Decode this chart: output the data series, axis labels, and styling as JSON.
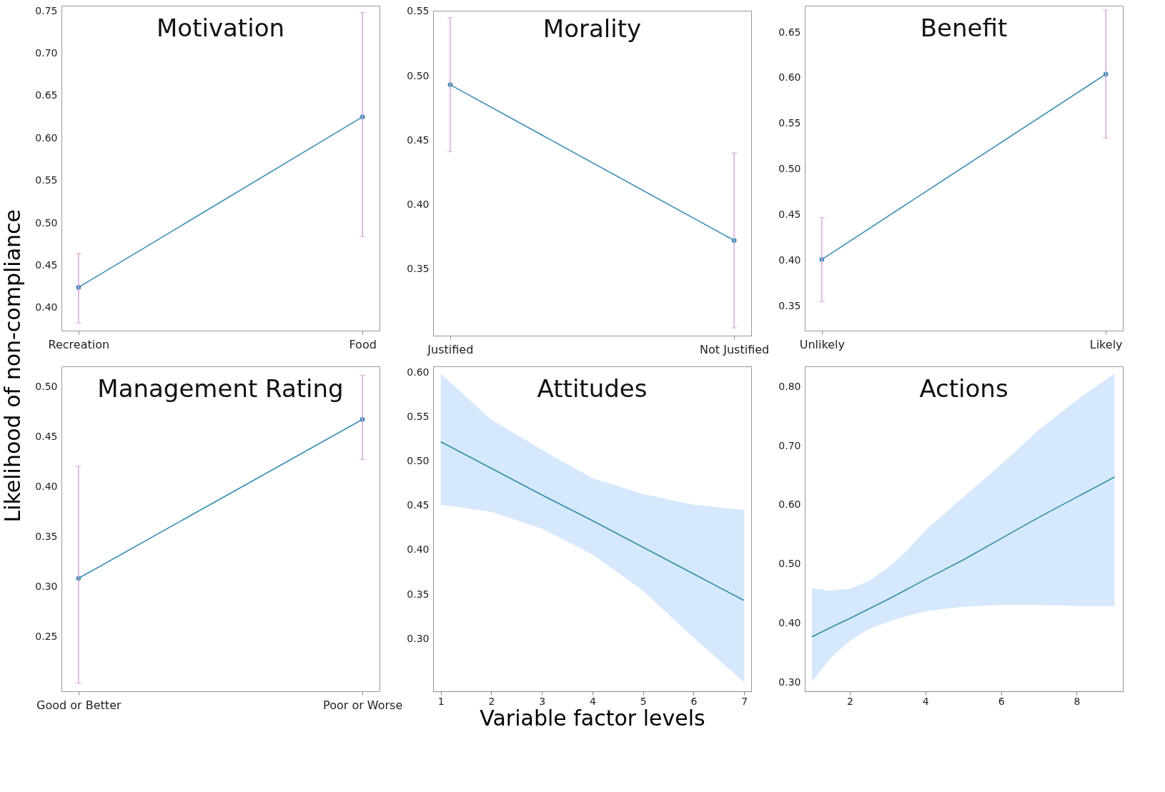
{
  "chart_data": [
    {
      "type": "line",
      "title": "Motivation",
      "ylabel": "Likelihood of non-compliance",
      "categories": [
        "Recreation",
        "Food"
      ],
      "marker": "circle",
      "series": [
        {
          "color": "#3a8fb5",
          "values": [
            0.424,
            0.625
          ],
          "errors": [
            [
              0.382,
              0.464
            ],
            [
              0.484,
              0.748
            ]
          ]
        }
      ],
      "ylim": [
        0.373,
        0.756
      ],
      "yticks": [
        {
          "value": 0.4,
          "label": "0.40"
        },
        {
          "value": 0.45,
          "label": "0.45"
        },
        {
          "value": 0.5,
          "label": "0.50"
        },
        {
          "value": 0.55,
          "label": "0.55"
        },
        {
          "value": 0.6,
          "label": "0.60"
        },
        {
          "value": 0.65,
          "label": "0.65"
        },
        {
          "value": 0.7,
          "label": "0.70"
        },
        {
          "value": 0.75,
          "label": "0.75"
        }
      ]
    },
    {
      "type": "line",
      "title": "Morality",
      "categories": [
        "Justified",
        "Not Justified"
      ],
      "marker": "circle",
      "series": [
        {
          "color": "#3a8fb5",
          "values": [
            0.493,
            0.372
          ],
          "errors": [
            [
              0.441,
              0.545
            ],
            [
              0.304,
              0.44
            ]
          ]
        }
      ],
      "ylim": [
        0.298,
        0.5505
      ],
      "yticks": [
        {
          "value": 0.35,
          "label": "0.35"
        },
        {
          "value": 0.4,
          "label": "0.40"
        },
        {
          "value": 0.45,
          "label": "0.45"
        },
        {
          "value": 0.5,
          "label": "0.50"
        },
        {
          "value": 0.55,
          "label": "0.55"
        }
      ]
    },
    {
      "type": "line",
      "title": "Benefit",
      "categories": [
        "Unlikely",
        "Likely"
      ],
      "marker": "circle",
      "series": [
        {
          "color": "#3a8fb5",
          "values": [
            0.401,
            0.604
          ],
          "errors": [
            [
              0.355,
              0.447
            ],
            [
              0.534,
              0.674
            ]
          ]
        }
      ],
      "ylim": [
        0.323,
        0.679
      ],
      "yticks": [
        {
          "value": 0.35,
          "label": "0.35"
        },
        {
          "value": 0.4,
          "label": "0.40"
        },
        {
          "value": 0.45,
          "label": "0.45"
        },
        {
          "value": 0.5,
          "label": "0.50"
        },
        {
          "value": 0.55,
          "label": "0.55"
        },
        {
          "value": 0.6,
          "label": "0.60"
        },
        {
          "value": 0.65,
          "label": "0.65"
        }
      ]
    },
    {
      "type": "line",
      "title": "Management Rating",
      "categories": [
        "Good or Better",
        "Poor or Worse"
      ],
      "marker": "circle",
      "series": [
        {
          "color": "#3a8fb5",
          "values": [
            0.308,
            0.467
          ],
          "errors": [
            [
              0.203,
              0.42
            ],
            [
              0.427,
              0.511
            ]
          ]
        }
      ],
      "ylim": [
        0.195,
        0.52
      ],
      "yticks": [
        {
          "value": 0.25,
          "label": "0.25"
        },
        {
          "value": 0.3,
          "label": "0.30"
        },
        {
          "value": 0.35,
          "label": "0.35"
        },
        {
          "value": 0.4,
          "label": "0.40"
        },
        {
          "value": 0.45,
          "label": "0.45"
        },
        {
          "value": 0.5,
          "label": "0.50"
        }
      ]
    },
    {
      "type": "line",
      "title": "Attitudes",
      "xlabel": "Variable factor levels",
      "x": [
        1,
        2,
        3,
        4,
        5,
        6,
        7
      ],
      "series": [
        {
          "color": "#2f8fa3",
          "values": [
            0.522,
            0.492,
            0.462,
            0.433,
            0.403,
            0.373,
            0.343
          ],
          "lower": [
            0.451,
            0.443,
            0.424,
            0.395,
            0.354,
            0.301,
            0.251
          ],
          "upper": [
            0.599,
            0.547,
            0.513,
            0.481,
            0.463,
            0.451,
            0.445
          ]
        }
      ],
      "xlim": [
        0.85,
        7.14
      ],
      "xticks": [
        1,
        2,
        3,
        4,
        5,
        6,
        7
      ],
      "ylim": [
        0.2405,
        0.607
      ],
      "yticks": [
        {
          "value": 0.3,
          "label": "0.30"
        },
        {
          "value": 0.35,
          "label": "0.35"
        },
        {
          "value": 0.4,
          "label": "0.40"
        },
        {
          "value": 0.45,
          "label": "0.45"
        },
        {
          "value": 0.5,
          "label": "0.50"
        },
        {
          "value": 0.55,
          "label": "0.55"
        },
        {
          "value": 0.6,
          "label": "0.60"
        }
      ]
    },
    {
      "type": "line",
      "title": "Actions",
      "x": [
        1,
        1.5,
        2,
        2.5,
        3,
        3.5,
        4,
        5,
        6,
        7,
        8,
        9
      ],
      "series": [
        {
          "color": "#2f8fa3",
          "values": [
            0.377,
            0.393,
            0.408,
            0.424,
            0.44,
            0.457,
            0.474,
            0.507,
            0.543,
            0.579,
            0.613,
            0.647
          ],
          "lower": [
            0.301,
            0.342,
            0.37,
            0.39,
            0.402,
            0.412,
            0.42,
            0.428,
            0.431,
            0.431,
            0.429,
            0.429
          ],
          "upper": [
            0.459,
            0.455,
            0.458,
            0.471,
            0.493,
            0.522,
            0.557,
            0.613,
            0.668,
            0.727,
            0.777,
            0.822
          ]
        }
      ],
      "xlim": [
        0.81,
        9.22
      ],
      "xticks": [
        2,
        4,
        6,
        8
      ],
      "ylim": [
        0.285,
        0.834
      ],
      "yticks": [
        {
          "value": 0.3,
          "label": "0.30"
        },
        {
          "value": 0.4,
          "label": "0.40"
        },
        {
          "value": 0.5,
          "label": "0.50"
        },
        {
          "value": 0.6,
          "label": "0.60"
        },
        {
          "value": 0.7,
          "label": "0.70"
        },
        {
          "value": 0.8,
          "label": "0.80"
        }
      ]
    }
  ]
}
